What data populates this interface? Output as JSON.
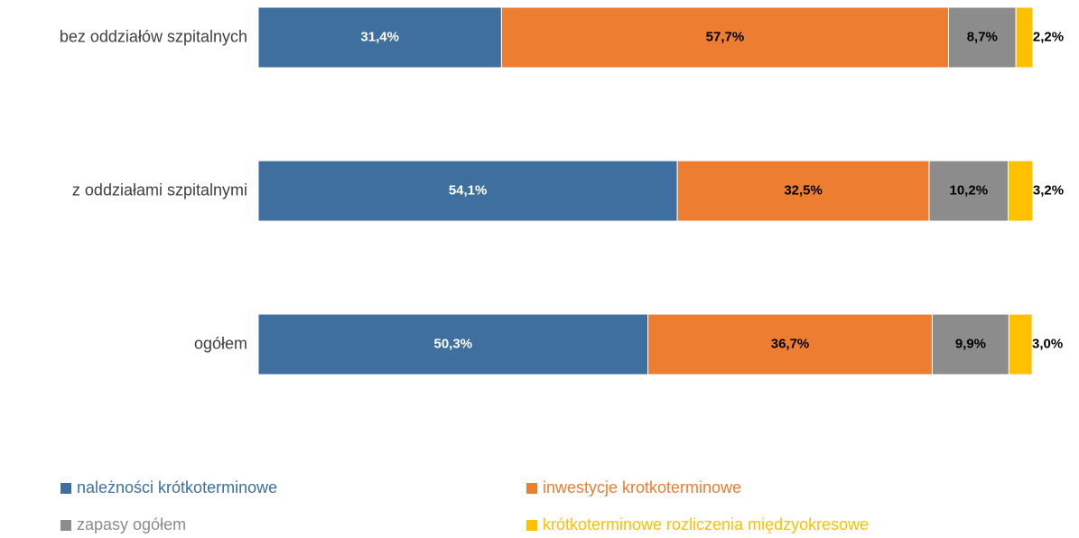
{
  "chart_data": {
    "type": "stacked_bar_horizontal",
    "categories": [
      "bez oddziałów szpitalnych",
      "z oddziałami szpitalnymi",
      "ogółem"
    ],
    "xlim": [
      0,
      100
    ],
    "series": [
      {
        "name": "należności krótkoterminowe",
        "color": "#3e6f9e",
        "label_color": "#ffffff",
        "values": [
          31.4,
          54.1,
          50.3
        ],
        "value_labels": [
          "31,4%",
          "54,1%",
          "50,3%"
        ]
      },
      {
        "name": "inwestycje krotkoterminowe",
        "color": "#ed7d31",
        "label_color": "#000000",
        "values": [
          57.7,
          32.5,
          36.7
        ],
        "value_labels": [
          "57,7%",
          "32,5%",
          "36,7%"
        ]
      },
      {
        "name": "zapasy ogółem",
        "color": "#8c8c8c",
        "label_color": "#000000",
        "values": [
          8.7,
          10.2,
          9.9
        ],
        "value_labels": [
          "8,7%",
          "10,2%",
          "9,9%"
        ]
      },
      {
        "name": "krótkoterminowe rozliczenia międzyokresowe",
        "color": "#ffc000",
        "label_color": "#000000",
        "values": [
          2.2,
          3.2,
          3.0
        ],
        "value_labels": [
          "2,2%",
          "3,2%",
          "3,0%"
        ]
      }
    ]
  }
}
